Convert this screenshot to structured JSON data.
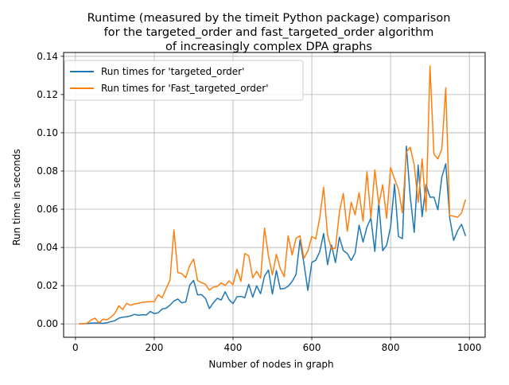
{
  "chart_data": {
    "type": "line",
    "title_lines": [
      "Runtime (measured by the timeit Python package) comparison",
      "for the targeted_order and fast_targeted_order algorithm",
      "of increasingly complex DPA graphs"
    ],
    "xlabel": "Number of nodes in graph",
    "ylabel": "Run time in seconds",
    "xlim": [
      -30,
      1040
    ],
    "ylim": [
      -0.007,
      0.142
    ],
    "x_ticks": [
      0,
      200,
      400,
      600,
      800,
      1000
    ],
    "y_ticks": [
      0.0,
      0.02,
      0.04,
      0.06,
      0.08,
      0.1,
      0.12,
      0.14
    ],
    "x_tick_labels": [
      "0",
      "200",
      "400",
      "600",
      "800",
      "1000"
    ],
    "y_tick_labels": [
      "0.00",
      "0.02",
      "0.04",
      "0.06",
      "0.08",
      "0.10",
      "0.12",
      "0.14"
    ],
    "grid": true,
    "legend_position": "top-left",
    "x": [
      10,
      20,
      30,
      40,
      50,
      60,
      70,
      80,
      90,
      100,
      110,
      120,
      130,
      140,
      150,
      160,
      170,
      180,
      190,
      200,
      210,
      220,
      230,
      240,
      250,
      260,
      270,
      280,
      290,
      300,
      310,
      320,
      330,
      340,
      350,
      360,
      370,
      380,
      390,
      400,
      410,
      420,
      430,
      440,
      450,
      460,
      470,
      480,
      490,
      500,
      510,
      520,
      530,
      540,
      550,
      560,
      570,
      580,
      590,
      600,
      610,
      620,
      630,
      640,
      650,
      660,
      670,
      680,
      690,
      700,
      710,
      720,
      730,
      740,
      750,
      760,
      770,
      780,
      790,
      800,
      810,
      820,
      830,
      840,
      850,
      860,
      870,
      880,
      890,
      900,
      910,
      920,
      930,
      940,
      950,
      960,
      970,
      980,
      990
    ],
    "series": [
      {
        "name": "Run times for 'targeted_order'",
        "color": "#1f77b4",
        "values": [
          0.0,
          0.0001,
          0.0002,
          0.0004,
          0.0005,
          0.0004,
          0.0003,
          0.0006,
          0.0012,
          0.0017,
          0.003,
          0.0035,
          0.0037,
          0.0042,
          0.005,
          0.0045,
          0.0048,
          0.0047,
          0.0065,
          0.0054,
          0.0058,
          0.0078,
          0.0082,
          0.0098,
          0.012,
          0.013,
          0.011,
          0.0115,
          0.0202,
          0.0228,
          0.0152,
          0.0153,
          0.0134,
          0.008,
          0.011,
          0.0134,
          0.0125,
          0.0168,
          0.0127,
          0.0106,
          0.0142,
          0.0144,
          0.0137,
          0.0207,
          0.014,
          0.0199,
          0.0158,
          0.0251,
          0.0282,
          0.0156,
          0.0279,
          0.0183,
          0.0185,
          0.0197,
          0.0222,
          0.0259,
          0.0439,
          0.0317,
          0.0175,
          0.0322,
          0.0333,
          0.0377,
          0.0473,
          0.031,
          0.0413,
          0.0321,
          0.0454,
          0.0384,
          0.0368,
          0.0332,
          0.0371,
          0.0517,
          0.0428,
          0.0507,
          0.0554,
          0.0379,
          0.0634,
          0.0383,
          0.0412,
          0.0507,
          0.0731,
          0.0457,
          0.0446,
          0.093,
          0.0662,
          0.0479,
          0.0831,
          0.0561,
          0.0729,
          0.0663,
          0.0663,
          0.0597,
          0.0768,
          0.0838,
          0.0556,
          0.0437,
          0.0487,
          0.0521,
          0.0462
        ]
      },
      {
        "name": "Run times for 'Fast_targeted_order'",
        "color": "#ff7f0e",
        "values": [
          0.0,
          0.0001,
          0.0004,
          0.0021,
          0.003,
          0.0005,
          0.0025,
          0.0021,
          0.0035,
          0.0055,
          0.0095,
          0.0075,
          0.0108,
          0.0097,
          0.0105,
          0.0108,
          0.0113,
          0.0115,
          0.0116,
          0.0116,
          0.0152,
          0.0137,
          0.0183,
          0.0229,
          0.0492,
          0.0268,
          0.0263,
          0.0242,
          0.0305,
          0.0339,
          0.0227,
          0.0216,
          0.0207,
          0.0177,
          0.0192,
          0.0196,
          0.0215,
          0.0201,
          0.0225,
          0.0205,
          0.0286,
          0.0222,
          0.0368,
          0.0356,
          0.0241,
          0.0275,
          0.0239,
          0.0501,
          0.0356,
          0.0256,
          0.0364,
          0.0288,
          0.0247,
          0.0461,
          0.0361,
          0.0448,
          0.0461,
          0.0343,
          0.0382,
          0.0457,
          0.0445,
          0.0554,
          0.0715,
          0.0464,
          0.0391,
          0.0396,
          0.0584,
          0.0683,
          0.0485,
          0.0636,
          0.0571,
          0.0687,
          0.0538,
          0.0795,
          0.0554,
          0.0806,
          0.0624,
          0.0728,
          0.0552,
          0.0818,
          0.0759,
          0.0704,
          0.0581,
          0.0901,
          0.0924,
          0.0831,
          0.0636,
          0.0864,
          0.0588,
          0.135,
          0.0888,
          0.0863,
          0.0914,
          0.1236,
          0.0567,
          0.0563,
          0.0558,
          0.058,
          0.0649
        ]
      }
    ]
  }
}
